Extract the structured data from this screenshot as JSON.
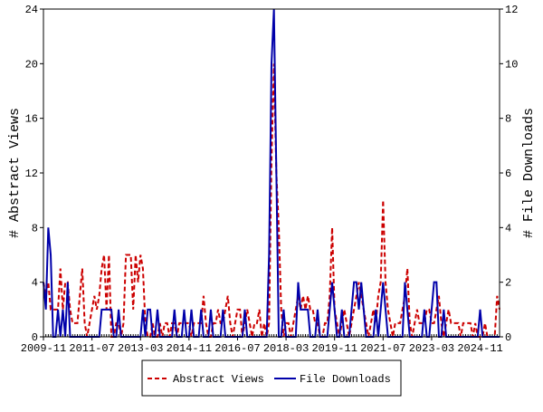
{
  "chart_data": {
    "type": "line",
    "y_label": "# Abstract Views",
    "y2_label": "# File Downloads",
    "x": [
      "2009-11",
      "2009-12",
      "2010-01",
      "2010-02",
      "2010-03",
      "2010-04",
      "2010-05",
      "2010-06",
      "2010-07",
      "2010-08",
      "2010-09",
      "2010-10",
      "2010-11",
      "2010-12",
      "2011-01",
      "2011-02",
      "2011-03",
      "2011-04",
      "2011-05",
      "2011-06",
      "2011-07",
      "2011-08",
      "2011-09",
      "2011-10",
      "2011-11",
      "2011-12",
      "2012-01",
      "2012-02",
      "2012-03",
      "2012-04",
      "2012-05",
      "2012-06",
      "2012-07",
      "2012-08",
      "2012-09",
      "2012-10",
      "2012-11",
      "2012-12",
      "2013-01",
      "2013-02",
      "2013-03",
      "2013-04",
      "2013-05",
      "2013-06",
      "2013-07",
      "2013-08",
      "2013-09",
      "2013-10",
      "2013-11",
      "2013-12",
      "2014-01",
      "2014-02",
      "2014-03",
      "2014-04",
      "2014-05",
      "2014-06",
      "2014-07",
      "2014-08",
      "2014-09",
      "2014-10",
      "2014-11",
      "2014-12",
      "2015-01",
      "2015-02",
      "2015-03",
      "2015-04",
      "2015-05",
      "2015-06",
      "2015-07",
      "2015-08",
      "2015-09",
      "2015-10",
      "2015-11",
      "2015-12",
      "2016-01",
      "2016-02",
      "2016-03",
      "2016-04",
      "2016-05",
      "2016-06",
      "2016-07",
      "2016-08",
      "2016-09",
      "2016-10",
      "2016-11",
      "2016-12",
      "2017-01",
      "2017-02",
      "2017-03",
      "2017-04",
      "2017-05",
      "2017-06",
      "2017-07",
      "2017-08",
      "2017-09",
      "2017-10",
      "2017-11",
      "2017-12",
      "2018-01",
      "2018-02",
      "2018-03",
      "2018-04",
      "2018-05",
      "2018-06",
      "2018-07",
      "2018-08",
      "2018-09",
      "2018-10",
      "2018-11",
      "2018-12",
      "2019-01",
      "2019-02",
      "2019-03",
      "2019-04",
      "2019-05",
      "2019-06",
      "2019-07",
      "2019-08",
      "2019-09",
      "2019-10",
      "2019-11",
      "2019-12",
      "2020-01",
      "2020-02",
      "2020-03",
      "2020-04",
      "2020-05",
      "2020-06",
      "2020-07",
      "2020-08",
      "2020-09",
      "2020-10",
      "2020-11",
      "2020-12",
      "2021-01",
      "2021-02",
      "2021-03",
      "2021-04",
      "2021-05",
      "2021-06",
      "2021-07",
      "2021-08",
      "2021-09",
      "2021-10",
      "2021-11",
      "2021-12",
      "2022-01",
      "2022-02",
      "2022-03",
      "2022-04",
      "2022-05",
      "2022-06",
      "2022-07",
      "2022-08",
      "2022-09",
      "2022-10",
      "2022-11",
      "2022-12",
      "2023-01",
      "2023-02",
      "2023-03",
      "2023-04",
      "2023-05",
      "2023-06",
      "2023-07",
      "2023-08",
      "2023-09",
      "2023-10",
      "2023-11",
      "2023-12",
      "2024-01",
      "2024-02",
      "2024-03",
      "2024-04",
      "2024-05",
      "2024-06",
      "2024-07",
      "2024-08",
      "2024-09",
      "2024-10",
      "2024-11",
      "2024-12",
      "2025-01",
      "2025-02",
      "2025-03",
      "2025-04",
      "2025-05",
      "2025-06",
      "2025-07"
    ],
    "xticks": [
      "2009-11",
      "2011-07",
      "2013-03",
      "2014-11",
      "2016-07",
      "2018-03",
      "2019-11",
      "2021-07",
      "2023-03",
      "2024-11"
    ],
    "ylim": [
      0,
      24
    ],
    "yticks": [
      0,
      4,
      8,
      12,
      16,
      20,
      24
    ],
    "y2lim": [
      0,
      12
    ],
    "y2ticks": [
      0,
      2,
      4,
      6,
      8,
      10,
      12
    ],
    "legend": "bottom",
    "series": [
      {
        "name": "Abstract Views",
        "color": "#cc0000",
        "line_style": "dashed",
        "values": [
          4,
          3,
          4,
          2,
          2,
          2,
          2,
          5,
          2,
          4,
          4,
          2,
          1,
          1,
          1,
          3,
          5,
          1,
          0,
          1,
          2,
          3,
          2,
          3,
          5,
          6,
          2,
          6,
          0,
          0,
          1,
          1,
          0,
          1,
          6,
          6,
          6,
          2,
          6,
          4,
          6,
          5,
          1,
          0,
          0,
          1,
          0,
          0,
          1,
          0,
          1,
          1,
          0,
          1,
          1,
          0,
          1,
          1,
          1,
          1,
          1,
          0,
          1,
          1,
          1,
          1,
          3,
          1,
          0,
          0,
          1,
          1,
          2,
          1,
          1,
          2,
          3,
          1,
          0,
          1,
          2,
          2,
          0,
          1,
          2,
          1,
          0,
          1,
          1,
          2,
          0,
          1,
          0,
          1,
          13,
          20,
          12,
          8,
          2,
          0,
          1,
          1,
          0,
          1,
          2,
          3,
          2,
          3,
          2,
          3,
          2,
          2,
          1,
          1,
          0,
          0,
          1,
          1,
          3,
          8,
          2,
          1,
          0,
          1,
          2,
          1,
          0,
          1,
          2,
          3,
          4,
          3,
          2,
          1,
          0,
          1,
          2,
          1,
          3,
          4,
          10,
          4,
          2,
          1,
          0,
          1,
          1,
          1,
          2,
          3,
          5,
          1,
          0,
          1,
          2,
          1,
          1,
          1,
          2,
          2,
          1,
          1,
          2,
          3,
          1,
          0,
          1,
          2,
          1,
          1,
          1,
          1,
          0,
          1,
          1,
          1,
          1,
          0,
          1,
          0,
          0,
          0,
          1,
          0,
          0,
          0,
          0,
          3,
          2
        ]
      },
      {
        "name": "File Downloads",
        "color": "#0000aa",
        "line_style": "solid",
        "axis": "y2",
        "values": [
          2,
          1,
          4,
          3,
          0,
          0,
          1,
          0,
          1,
          0,
          2,
          0,
          0,
          0,
          0,
          0,
          0,
          0,
          0,
          0,
          0,
          0,
          0,
          0,
          1,
          1,
          1,
          1,
          1,
          0,
          0,
          1,
          0,
          0,
          0,
          0,
          0,
          0,
          0,
          0,
          0,
          1,
          0,
          1,
          1,
          0,
          0,
          1,
          0,
          0,
          0,
          0,
          0,
          0,
          1,
          0,
          0,
          0,
          1,
          0,
          0,
          1,
          0,
          0,
          0,
          1,
          0,
          0,
          0,
          1,
          0,
          0,
          0,
          0,
          1,
          0,
          0,
          0,
          0,
          0,
          0,
          0,
          0,
          1,
          0,
          0,
          0,
          0,
          0,
          0,
          0,
          0,
          0,
          3,
          10,
          12,
          6,
          0,
          0,
          1,
          0,
          0,
          0,
          0,
          0,
          2,
          1,
          1,
          1,
          1,
          0,
          0,
          0,
          1,
          0,
          0,
          0,
          0,
          1,
          2,
          1,
          0,
          0,
          1,
          0,
          0,
          0,
          1,
          2,
          2,
          1,
          2,
          1,
          0,
          0,
          0,
          0,
          1,
          0,
          1,
          2,
          1,
          0,
          0,
          0,
          0,
          0,
          0,
          0,
          2,
          1,
          0,
          0,
          0,
          0,
          0,
          0,
          1,
          0,
          0,
          1,
          2,
          2,
          0,
          0,
          1,
          0,
          0,
          0,
          0,
          0,
          0,
          0,
          0,
          0,
          0,
          0,
          0,
          0,
          0,
          1,
          0,
          0,
          0,
          0,
          0,
          0,
          0,
          0
        ]
      }
    ]
  }
}
